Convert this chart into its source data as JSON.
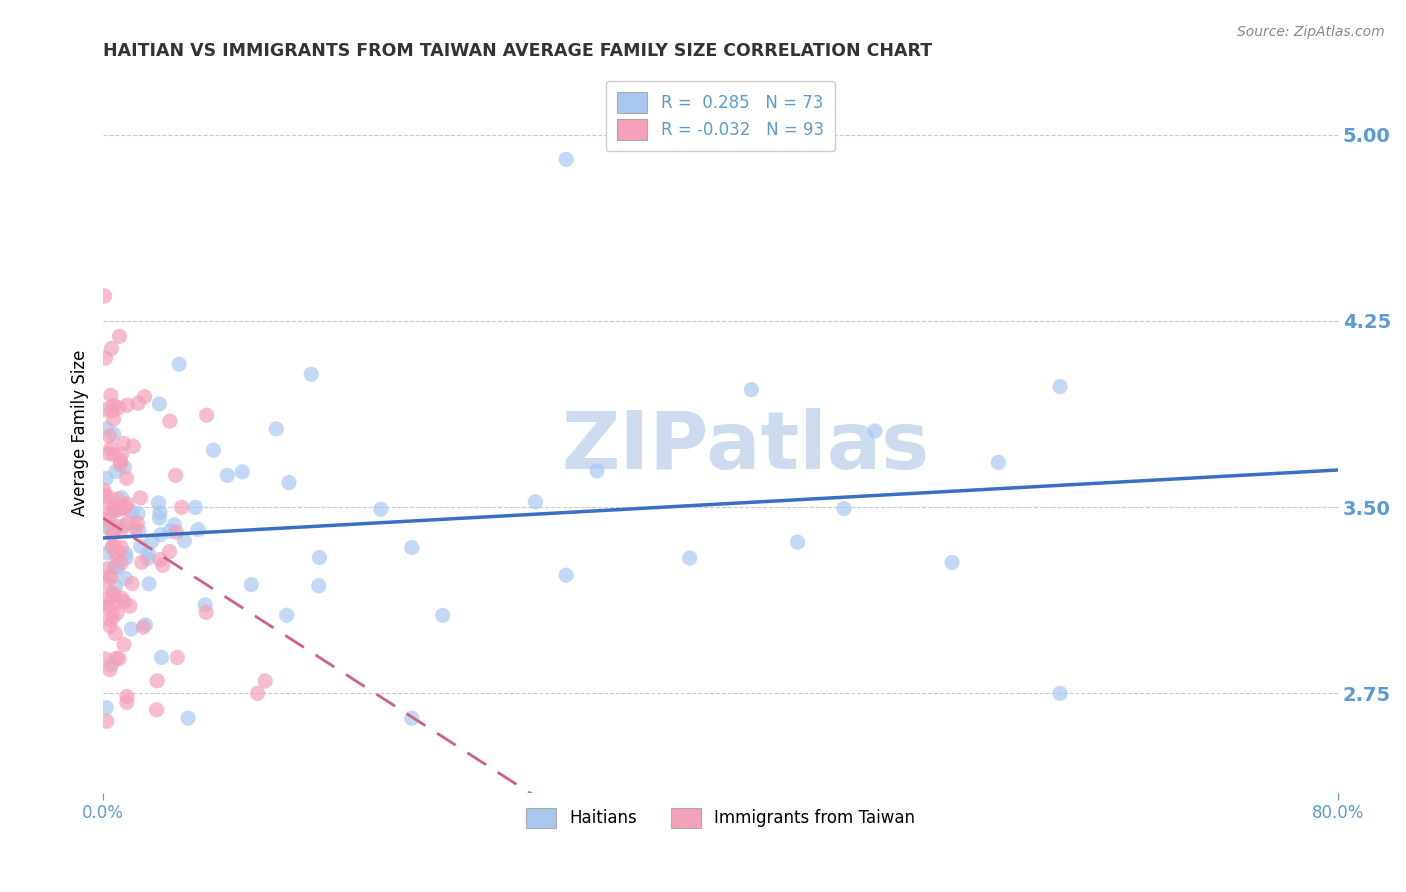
{
  "title": "HAITIAN VS IMMIGRANTS FROM TAIWAN AVERAGE FAMILY SIZE CORRELATION CHART",
  "source": "Source: ZipAtlas.com",
  "ylabel": "Average Family Size",
  "yticks": [
    2.75,
    3.5,
    4.25,
    5.0
  ],
  "ylim": [
    2.35,
    5.25
  ],
  "xlim": [
    0.0,
    80.0
  ],
  "legend_labels": [
    "Haitians",
    "Immigrants from Taiwan"
  ],
  "series1": {
    "label": "Haitians",
    "R": 0.285,
    "N": 73,
    "color": "#a8c8f0",
    "trend_color": "#3a6fc4"
  },
  "series2": {
    "label": "Immigrants from Taiwan",
    "R": -0.032,
    "N": 93,
    "color": "#f4a0b8",
    "trend_color": "#d06080"
  },
  "title_color": "#333333",
  "axis_color": "#5b9bd5",
  "grid_color": "#bbbbbb",
  "watermark": "ZIPatlas",
  "watermark_color": "#ccdcee"
}
